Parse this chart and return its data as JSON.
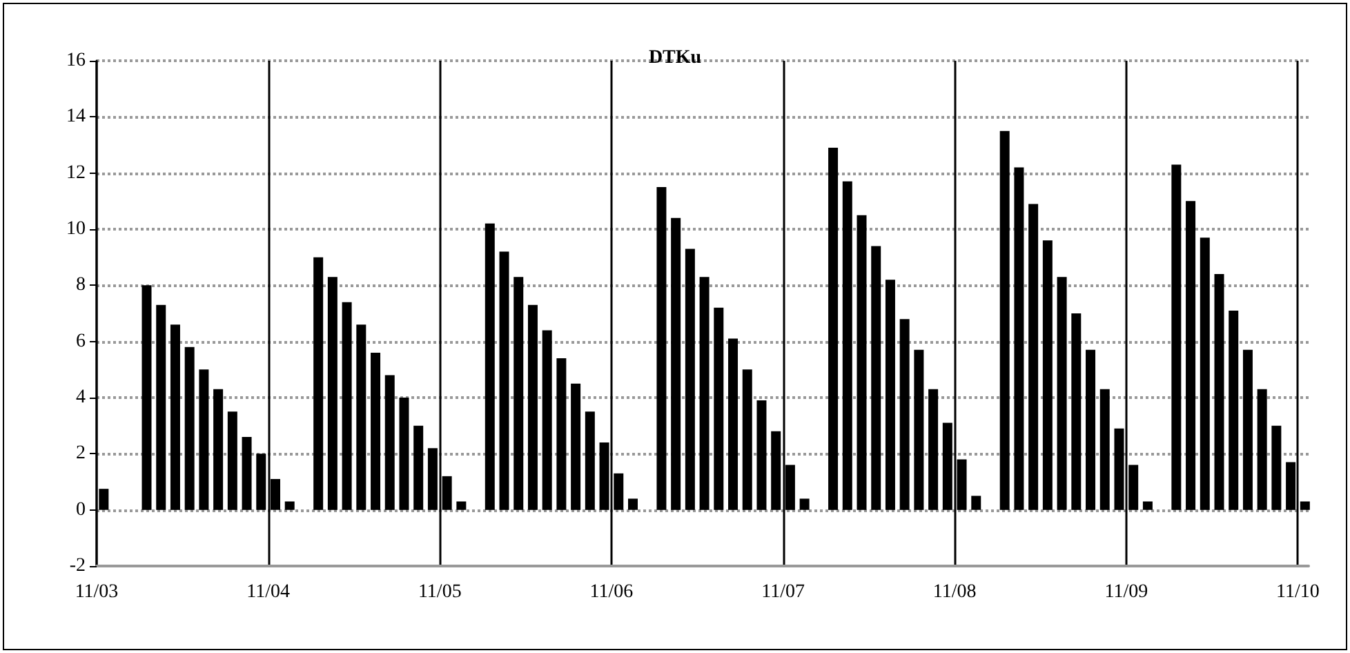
{
  "chart_data": {
    "type": "bar",
    "title": "DTKu",
    "x": [
      "--11-03T01:00",
      "--11-03T07:00",
      "--11-03T09:00",
      "--11-03T11:00",
      "--11-03T13:00",
      "--11-03T15:00",
      "--11-03T17:00",
      "--11-03T19:00",
      "--11-03T21:00",
      "--11-03T23:00",
      "--11-04T01:00",
      "--11-04T03:00",
      "--11-04T07:00",
      "--11-04T09:00",
      "--11-04T11:00",
      "--11-04T13:00",
      "--11-04T15:00",
      "--11-04T17:00",
      "--11-04T19:00",
      "--11-04T21:00",
      "--11-04T23:00",
      "--11-05T01:00",
      "--11-05T03:00",
      "--11-05T07:00",
      "--11-05T09:00",
      "--11-05T11:00",
      "--11-05T13:00",
      "--11-05T15:00",
      "--11-05T17:00",
      "--11-05T19:00",
      "--11-05T21:00",
      "--11-05T23:00",
      "--11-06T01:00",
      "--11-06T03:00",
      "--11-06T07:00",
      "--11-06T09:00",
      "--11-06T11:00",
      "--11-06T13:00",
      "--11-06T15:00",
      "--11-06T17:00",
      "--11-06T19:00",
      "--11-06T21:00",
      "--11-06T23:00",
      "--11-07T01:00",
      "--11-07T03:00",
      "--11-07T07:00",
      "--11-07T09:00",
      "--11-07T11:00",
      "--11-07T13:00",
      "--11-07T15:00",
      "--11-07T17:00",
      "--11-07T19:00",
      "--11-07T21:00",
      "--11-07T23:00",
      "--11-08T01:00",
      "--11-08T03:00",
      "--11-08T07:00",
      "--11-08T09:00",
      "--11-08T11:00",
      "--11-08T13:00",
      "--11-08T15:00",
      "--11-08T17:00",
      "--11-08T19:00",
      "--11-08T21:00",
      "--11-08T23:00",
      "--11-09T01:00",
      "--11-09T03:00",
      "--11-09T07:00",
      "--11-09T09:00",
      "--11-09T11:00",
      "--11-09T13:00",
      "--11-09T15:00",
      "--11-09T17:00",
      "--11-09T19:00",
      "--11-09T21:00",
      "--11-09T23:00",
      "--11-10T01:00"
    ],
    "values": [
      0.75,
      8.0,
      7.3,
      6.6,
      5.8,
      5.0,
      4.3,
      3.5,
      2.6,
      2.0,
      1.1,
      0.3,
      9.0,
      8.3,
      7.4,
      6.6,
      5.6,
      4.8,
      4.0,
      3.0,
      2.2,
      1.2,
      0.3,
      10.2,
      9.2,
      8.3,
      7.3,
      6.4,
      5.4,
      4.5,
      3.5,
      2.4,
      1.3,
      0.4,
      11.5,
      10.4,
      9.3,
      8.3,
      7.2,
      6.1,
      5.0,
      3.9,
      2.8,
      1.6,
      0.4,
      12.9,
      11.7,
      10.5,
      9.4,
      8.2,
      6.8,
      5.7,
      4.3,
      3.1,
      1.8,
      0.5,
      13.5,
      12.2,
      10.9,
      9.6,
      8.3,
      7.0,
      5.7,
      4.3,
      2.9,
      1.6,
      0.3,
      12.3,
      11.0,
      9.7,
      8.4,
      7.1,
      5.7,
      4.3,
      3.0,
      1.7,
      0.3
    ],
    "color": "#000000",
    "xlim": [
      "--11-03T00:00",
      "--11-10T01:30"
    ],
    "xticks": [
      {
        "value": "--11-03",
        "label": "11/03"
      },
      {
        "value": "--11-04",
        "label": "11/04"
      },
      {
        "value": "--11-05",
        "label": "11/05"
      },
      {
        "value": "--11-06",
        "label": "11/06"
      },
      {
        "value": "--11-07",
        "label": "11/07"
      },
      {
        "value": "--11-08",
        "label": "11/08"
      },
      {
        "value": "--11-09",
        "label": "11/09"
      },
      {
        "value": "--11-10",
        "label": "11/10"
      }
    ],
    "ylim": [
      -2,
      16
    ],
    "yticks": [
      -2,
      0,
      2,
      4,
      6,
      8,
      10,
      12,
      14,
      16
    ],
    "grid": true
  }
}
